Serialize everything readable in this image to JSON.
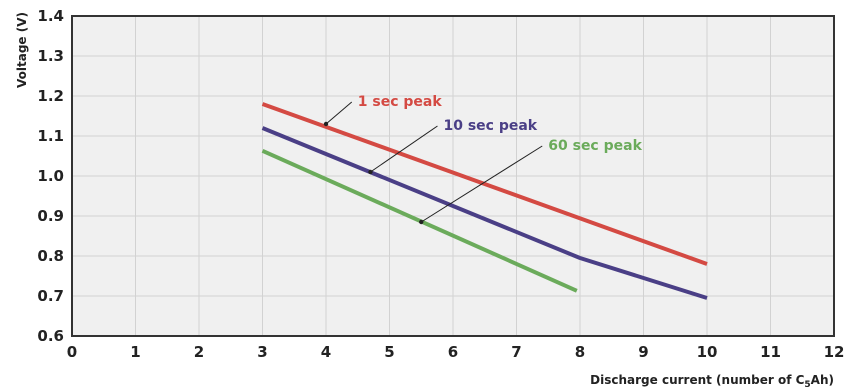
{
  "chart_data": {
    "type": "line",
    "xlabel": "Discharge current (number of C",
    "xlabel_subscript": "5",
    "xlabel_suffix": "Ah)",
    "ylabel": "Voltage (V)",
    "xlim": [
      0,
      12
    ],
    "ylim": [
      0.6,
      1.4
    ],
    "xticks": [
      "0",
      "1",
      "2",
      "3",
      "4",
      "5",
      "6",
      "7",
      "8",
      "9",
      "10",
      "11",
      "12"
    ],
    "yticks": [
      "0.6",
      "0.7",
      "0.8",
      "0.9",
      "1.0",
      "1.1",
      "1.2",
      "1.3",
      "1.4"
    ],
    "grid": true,
    "series": [
      {
        "name": "1 sec peak",
        "color": "#d44a43",
        "points": [
          [
            3,
            1.18
          ],
          [
            10,
            0.78
          ]
        ],
        "label_anchor": [
          4,
          1.13
        ],
        "label_at": [
          4.5,
          1.175
        ]
      },
      {
        "name": "10 sec peak",
        "color": "#4a3f86",
        "points": [
          [
            3,
            1.12
          ],
          [
            8,
            0.795
          ],
          [
            10,
            0.695
          ]
        ],
        "label_anchor": [
          4.7,
          1.01
        ],
        "label_at": [
          5.85,
          1.115
        ]
      },
      {
        "name": "60 sec peak",
        "color": "#6bab5b",
        "points": [
          [
            3,
            1.063
          ],
          [
            7.95,
            0.713
          ]
        ],
        "label_anchor": [
          5.5,
          0.885
        ],
        "label_at": [
          7.5,
          1.065
        ]
      }
    ]
  }
}
